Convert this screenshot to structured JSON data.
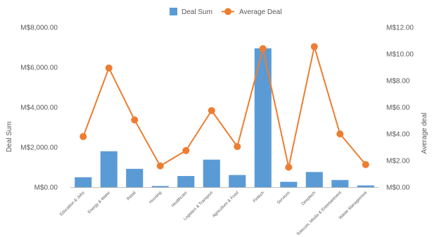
{
  "chart_data": {
    "type": "bar+line",
    "categories": [
      "Education & Jobs",
      "Energy & Water",
      "Retail",
      "Housing",
      "Healthcare",
      "Logistics & Transport",
      "Agriculture & Food",
      "Fintech",
      "Services",
      "Deeptech",
      "Telecom, Media & Entertainment",
      "Waste Management"
    ],
    "series": [
      {
        "name": "Deal Sum",
        "type": "bar",
        "axis": "left",
        "color": "#5b9bd5",
        "values": [
          500,
          1800,
          920,
          60,
          560,
          1380,
          610,
          6950,
          270,
          760,
          360,
          90
        ]
      },
      {
        "name": "Average Deal",
        "type": "line",
        "axis": "right",
        "color": "#ed7d31",
        "values": [
          3.8,
          8.95,
          5.05,
          1.6,
          2.75,
          5.75,
          3.05,
          10.4,
          1.5,
          10.55,
          4.0,
          1.7
        ]
      }
    ],
    "xlabel": "",
    "ylabel": "Deal Sum",
    "y2label": "Average deal",
    "ylim": [
      0,
      8000
    ],
    "y2lim": [
      0,
      12
    ],
    "yticks": [
      "M$0.00",
      "M$2,000.00",
      "M$4,000.00",
      "M$6,000.00",
      "M$8,000.00"
    ],
    "y2ticks": [
      "M$0.00",
      "M$2.00",
      "M$4.00",
      "M$6.00",
      "M$8.00",
      "M$10.00",
      "M$12.00"
    ],
    "grid": false,
    "legend": "top-center"
  }
}
